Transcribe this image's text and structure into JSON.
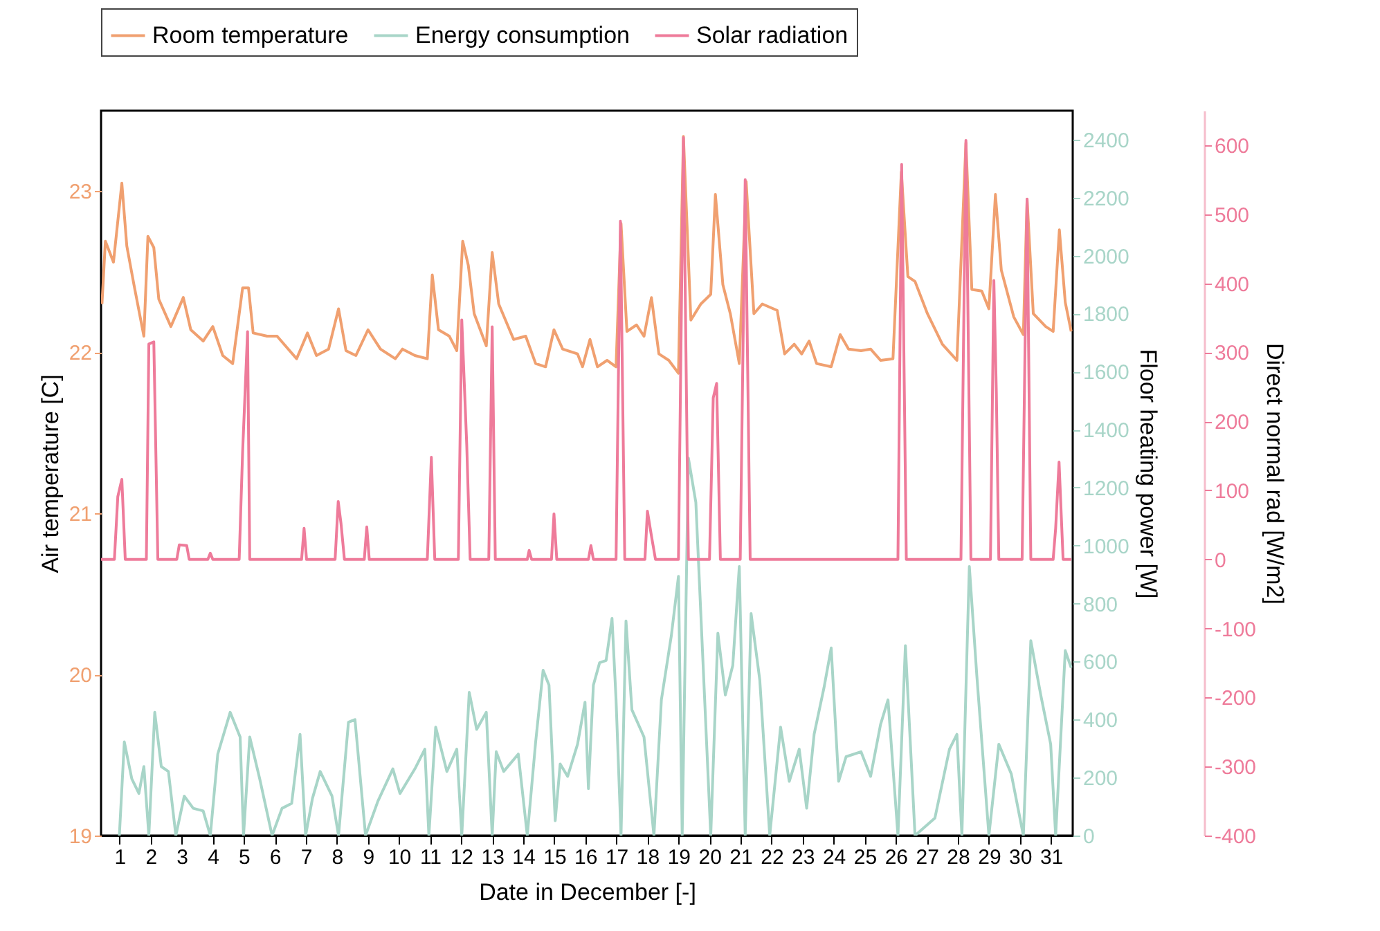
{
  "chart_data": {
    "type": "line",
    "xlabel": "Date in December [-]",
    "ylabel": "Air temperature [C]",
    "y2label": "Floor heating power [W]",
    "y3label": "Direct normal rad [W/m2]",
    "xlim": [
      0.4,
      31.7
    ],
    "xticks": [
      1,
      2,
      3,
      4,
      5,
      6,
      7,
      8,
      9,
      10,
      11,
      12,
      13,
      14,
      15,
      16,
      17,
      18,
      19,
      20,
      21,
      22,
      23,
      24,
      25,
      26,
      27,
      28,
      29,
      30,
      31
    ],
    "ylim": [
      19,
      23.5
    ],
    "yticks": [
      19,
      20,
      21,
      22,
      23
    ],
    "y2lim": [
      0,
      2500
    ],
    "y2ticks": [
      0,
      200,
      400,
      600,
      800,
      1000,
      1200,
      1400,
      1600,
      1800,
      2000,
      2200,
      2400
    ],
    "y3lim": [
      -400,
      650
    ],
    "y3ticks": [
      -400,
      -300,
      -200,
      -100,
      0,
      100,
      200,
      300,
      400,
      500,
      600
    ],
    "legend": "top",
    "grid": false,
    "line_style": "solid",
    "marker": "none",
    "series": [
      {
        "name": "Room temperature",
        "color": "#f0a070",
        "axis": "y",
        "x": [
          0.43,
          0.54,
          0.8,
          1.07,
          1.23,
          1.46,
          1.78,
          1.91,
          2.1,
          2.26,
          2.65,
          3.05,
          3.29,
          3.69,
          4.0,
          4.32,
          4.64,
          4.96,
          5.15,
          5.3,
          5.75,
          6.07,
          6.7,
          7.05,
          7.34,
          7.73,
          8.05,
          8.29,
          8.61,
          9.0,
          9.4,
          9.88,
          10.11,
          10.51,
          10.91,
          11.07,
          11.27,
          11.62,
          11.86,
          12.05,
          12.23,
          12.42,
          12.81,
          13.0,
          13.21,
          13.69,
          14.08,
          14.4,
          14.72,
          14.99,
          15.27,
          15.75,
          15.91,
          16.15,
          16.39,
          16.7,
          16.99,
          17.15,
          17.34,
          17.65,
          17.89,
          18.13,
          18.37,
          18.69,
          19.0,
          19.16,
          19.4,
          19.72,
          20.04,
          20.19,
          20.43,
          20.67,
          20.96,
          21.18,
          21.43,
          21.7,
          22.18,
          22.42,
          22.73,
          22.97,
          23.21,
          23.45,
          23.92,
          24.21,
          24.48,
          24.88,
          25.19,
          25.51,
          25.91,
          26.18,
          26.39,
          26.62,
          27.02,
          27.5,
          27.97,
          28.26,
          28.45,
          28.77,
          29.0,
          29.21,
          29.4,
          29.8,
          30.11,
          30.23,
          30.43,
          30.83,
          31.07,
          31.27,
          31.46,
          31.65
        ],
        "values": [
          22.3,
          22.69,
          22.56,
          23.05,
          22.66,
          22.42,
          22.1,
          22.72,
          22.65,
          22.33,
          22.16,
          22.34,
          22.14,
          22.07,
          22.16,
          21.98,
          21.93,
          22.4,
          22.4,
          22.12,
          22.1,
          22.1,
          21.96,
          22.12,
          21.98,
          22.02,
          22.27,
          22.01,
          21.98,
          22.14,
          22.02,
          21.96,
          22.02,
          21.98,
          21.96,
          22.48,
          22.14,
          22.1,
          22.01,
          22.69,
          22.54,
          22.24,
          22.04,
          22.62,
          22.3,
          22.08,
          22.1,
          21.93,
          21.91,
          22.14,
          22.02,
          21.99,
          21.91,
          22.08,
          21.91,
          21.95,
          21.91,
          22.8,
          22.13,
          22.17,
          22.1,
          22.34,
          21.99,
          21.95,
          21.87,
          23.34,
          22.2,
          22.3,
          22.36,
          22.98,
          22.42,
          22.24,
          21.93,
          23.06,
          22.24,
          22.3,
          22.26,
          21.99,
          22.05,
          21.99,
          22.07,
          21.93,
          21.91,
          22.11,
          22.02,
          22.01,
          22.02,
          21.95,
          21.96,
          23.12,
          22.47,
          22.44,
          22.24,
          22.05,
          21.95,
          23.3,
          22.39,
          22.38,
          22.27,
          22.98,
          22.51,
          22.22,
          22.11,
          22.95,
          22.24,
          22.16,
          22.13,
          22.76,
          22.31,
          22.13
        ]
      },
      {
        "name": "Energy consumption",
        "color": "#a8d5c8",
        "axis": "y2",
        "x": [
          0.99,
          1.15,
          1.39,
          1.62,
          1.78,
          1.94,
          2.13,
          2.34,
          2.57,
          2.81,
          3.08,
          3.37,
          3.69,
          3.92,
          4.16,
          4.56,
          4.88,
          4.99,
          5.19,
          5.51,
          5.91,
          6.23,
          6.54,
          6.81,
          6.99,
          7.21,
          7.46,
          7.84,
          8.05,
          8.37,
          8.58,
          8.92,
          9.32,
          9.8,
          10.03,
          10.51,
          10.83,
          10.96,
          11.18,
          11.54,
          11.86,
          12.02,
          12.26,
          12.5,
          12.81,
          13.0,
          13.13,
          13.37,
          13.84,
          14.13,
          14.4,
          14.64,
          14.83,
          15.03,
          15.19,
          15.43,
          15.75,
          15.99,
          16.1,
          16.26,
          16.46,
          16.67,
          16.86,
          16.99,
          17.15,
          17.31,
          17.5,
          17.89,
          18.21,
          18.45,
          18.77,
          19.0,
          19.12,
          19.32,
          19.56,
          20.04,
          20.27,
          20.51,
          20.75,
          20.96,
          21.15,
          21.34,
          21.62,
          21.94,
          22.29,
          22.57,
          22.89,
          23.13,
          23.37,
          23.69,
          23.92,
          24.16,
          24.4,
          24.88,
          25.19,
          25.51,
          25.75,
          26.07,
          26.31,
          26.62,
          27.26,
          27.73,
          27.97,
          28.13,
          28.37,
          28.61,
          29.0,
          29.32,
          29.72,
          30.11,
          30.35,
          30.67,
          30.99,
          31.15,
          31.46,
          31.65
        ],
        "values": [
          0,
          323,
          196,
          145,
          238,
          0,
          425,
          238,
          221,
          0,
          136,
          94,
          85,
          0,
          281,
          425,
          340,
          0,
          340,
          196,
          0,
          94,
          111,
          349,
          0,
          128,
          221,
          136,
          0,
          391,
          400,
          0,
          119,
          230,
          145,
          230,
          298,
          0,
          374,
          221,
          298,
          0,
          494,
          366,
          425,
          0,
          289,
          221,
          281,
          0,
          323,
          570,
          519,
          51,
          247,
          204,
          315,
          460,
          162,
          519,
          596,
          604,
          749,
          468,
          0,
          740,
          434,
          340,
          0,
          468,
          689,
          894,
          0,
          1302,
          1149,
          0,
          698,
          485,
          587,
          928,
          0,
          766,
          536,
          0,
          374,
          187,
          298,
          94,
          349,
          511,
          647,
          187,
          272,
          289,
          204,
          383,
          468,
          0,
          655,
          0,
          60,
          298,
          349,
          0,
          928,
          553,
          0,
          315,
          213,
          0,
          672,
          485,
          315,
          0,
          638,
          579
        ]
      },
      {
        "name": "Solar radiation",
        "color": "#ee7b9a",
        "axis": "y3",
        "x": [
          0.4,
          0.83,
          0.94,
          1.07,
          1.18,
          1.86,
          1.94,
          2.1,
          2.23,
          2.84,
          2.92,
          3.16,
          3.24,
          3.84,
          3.92,
          4.0,
          4.85,
          4.96,
          5.12,
          5.19,
          6.86,
          6.94,
          7.02,
          7.94,
          8.04,
          8.13,
          8.24,
          8.88,
          8.96,
          9.04,
          10.91,
          11.04,
          11.15,
          11.91,
          12.02,
          12.18,
          12.29,
          12.89,
          13.0,
          13.1,
          14.13,
          14.19,
          14.27,
          14.91,
          14.99,
          15.08,
          16.1,
          16.18,
          16.26,
          16.99,
          17.13,
          17.27,
          17.92,
          18.0,
          18.13,
          18.26,
          19.0,
          19.16,
          19.32,
          20.0,
          20.12,
          20.23,
          20.35,
          20.99,
          21.15,
          21.31,
          26.07,
          26.19,
          26.34,
          28.1,
          28.26,
          28.42,
          29.05,
          29.16,
          29.24,
          29.32,
          30.07,
          30.23,
          30.35,
          31.07,
          31.15,
          31.26,
          31.39,
          31.65
        ],
        "values": [
          0,
          0,
          91,
          116,
          0,
          0,
          312,
          315,
          0,
          0,
          21,
          20,
          0,
          0,
          9,
          0,
          0,
          155,
          330,
          0,
          0,
          45,
          0,
          0,
          84,
          52,
          0,
          0,
          47,
          0,
          0,
          148,
          0,
          0,
          347,
          166,
          0,
          0,
          337,
          0,
          0,
          13,
          0,
          0,
          66,
          0,
          0,
          20,
          0,
          0,
          490,
          0,
          0,
          70,
          34,
          0,
          0,
          611,
          0,
          0,
          234,
          255,
          0,
          0,
          550,
          0,
          0,
          572,
          0,
          0,
          607,
          0,
          0,
          404,
          241,
          0,
          0,
          522,
          0,
          0,
          45,
          141,
          0,
          0
        ]
      }
    ]
  }
}
